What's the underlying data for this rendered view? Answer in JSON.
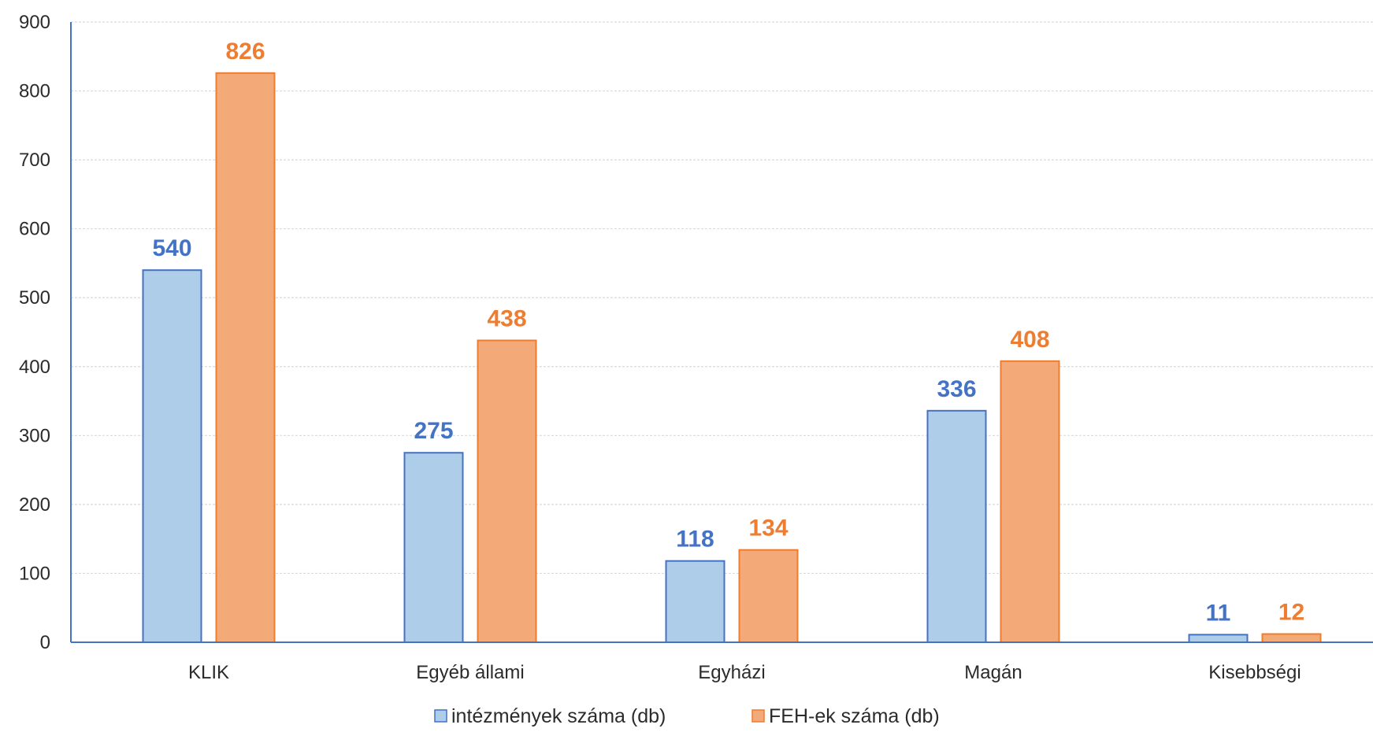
{
  "chart_data": {
    "type": "bar",
    "categories": [
      "KLIK",
      "Egyéb állami",
      "Egyházi",
      "Magán",
      "Kisebbségi"
    ],
    "series": [
      {
        "name": "intézmények száma (db)",
        "values": [
          540,
          275,
          118,
          336,
          11
        ],
        "fill": "#AECDE8",
        "stroke": "#4472C4",
        "label_color": "#4472C4"
      },
      {
        "name": "FEH-ek száma (db)",
        "values": [
          826,
          438,
          134,
          408,
          12
        ],
        "fill": "#F3AA78",
        "stroke": "#ED7D31",
        "label_color": "#ED7D31"
      }
    ],
    "yticks": [
      "0",
      "100",
      "200",
      "300",
      "400",
      "500",
      "600",
      "700",
      "800",
      "900"
    ],
    "ylim": [
      0,
      900
    ],
    "grid": true,
    "legend_position": "bottom-center",
    "axis_color": "#4472C4",
    "grid_color": "#D9D9D9"
  }
}
